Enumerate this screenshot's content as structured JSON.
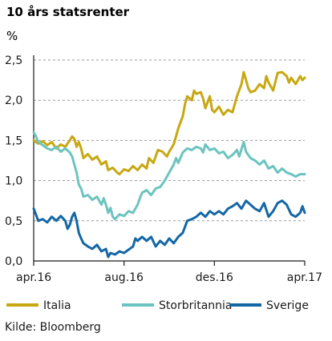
{
  "chart_data": {
    "type": "line",
    "title": "10 års statsrenter",
    "ylabel": "%",
    "source": "Kilde: Bloomberg",
    "ylim": [
      0,
      2.5
    ],
    "yticks": [
      "0,0",
      "0,5",
      "1,0",
      "1,5",
      "2,0",
      "2,5"
    ],
    "ytick_values": [
      0,
      0.5,
      1.0,
      1.5,
      2.0,
      2.5
    ],
    "xlim": [
      0,
      12
    ],
    "xtick_labels": [
      "apr.16",
      "aug.16",
      "des.16",
      "apr.17"
    ],
    "xtick_values": [
      0,
      4,
      8,
      12
    ],
    "grid": "horizontal dashed",
    "legend": "bottom",
    "series": [
      {
        "name": "Italia",
        "color": "#c8a812",
        "points": [
          [
            0,
            1.5
          ],
          [
            0.2,
            1.46
          ],
          [
            0.4,
            1.49
          ],
          [
            0.6,
            1.44
          ],
          [
            0.8,
            1.48
          ],
          [
            1.0,
            1.4
          ],
          [
            1.2,
            1.45
          ],
          [
            1.4,
            1.42
          ],
          [
            1.6,
            1.5
          ],
          [
            1.7,
            1.55
          ],
          [
            1.8,
            1.52
          ],
          [
            1.9,
            1.42
          ],
          [
            2.0,
            1.48
          ],
          [
            2.1,
            1.4
          ],
          [
            2.2,
            1.28
          ],
          [
            2.4,
            1.33
          ],
          [
            2.6,
            1.26
          ],
          [
            2.8,
            1.3
          ],
          [
            3.0,
            1.2
          ],
          [
            3.2,
            1.24
          ],
          [
            3.3,
            1.13
          ],
          [
            3.5,
            1.16
          ],
          [
            3.7,
            1.1
          ],
          [
            3.8,
            1.08
          ],
          [
            4.0,
            1.14
          ],
          [
            4.2,
            1.12
          ],
          [
            4.4,
            1.18
          ],
          [
            4.6,
            1.13
          ],
          [
            4.8,
            1.2
          ],
          [
            5.0,
            1.15
          ],
          [
            5.1,
            1.28
          ],
          [
            5.3,
            1.22
          ],
          [
            5.5,
            1.38
          ],
          [
            5.7,
            1.36
          ],
          [
            5.9,
            1.3
          ],
          [
            6.0,
            1.36
          ],
          [
            6.2,
            1.45
          ],
          [
            6.3,
            1.55
          ],
          [
            6.4,
            1.65
          ],
          [
            6.6,
            1.8
          ],
          [
            6.7,
            1.95
          ],
          [
            6.8,
            2.05
          ],
          [
            7.0,
            2.0
          ],
          [
            7.1,
            2.12
          ],
          [
            7.2,
            2.08
          ],
          [
            7.4,
            2.1
          ],
          [
            7.5,
            2.02
          ],
          [
            7.6,
            1.9
          ],
          [
            7.8,
            2.05
          ],
          [
            7.9,
            1.88
          ],
          [
            8.0,
            1.85
          ],
          [
            8.2,
            1.92
          ],
          [
            8.4,
            1.82
          ],
          [
            8.6,
            1.88
          ],
          [
            8.8,
            1.85
          ],
          [
            9.0,
            2.05
          ],
          [
            9.2,
            2.2
          ],
          [
            9.3,
            2.35
          ],
          [
            9.4,
            2.25
          ],
          [
            9.5,
            2.15
          ],
          [
            9.6,
            2.1
          ],
          [
            9.8,
            2.12
          ],
          [
            10.0,
            2.2
          ],
          [
            10.2,
            2.15
          ],
          [
            10.3,
            2.3
          ],
          [
            10.4,
            2.22
          ],
          [
            10.6,
            2.12
          ],
          [
            10.8,
            2.34
          ],
          [
            11.0,
            2.35
          ],
          [
            11.2,
            2.3
          ],
          [
            11.3,
            2.22
          ],
          [
            11.4,
            2.28
          ],
          [
            11.6,
            2.2
          ],
          [
            11.8,
            2.3
          ],
          [
            11.9,
            2.25
          ],
          [
            12.0,
            2.28
          ]
        ]
      },
      {
        "name": "Storbritannia",
        "color": "#6cc4c0",
        "points": [
          [
            0,
            1.6
          ],
          [
            0.1,
            1.55
          ],
          [
            0.2,
            1.48
          ],
          [
            0.4,
            1.44
          ],
          [
            0.6,
            1.4
          ],
          [
            0.8,
            1.38
          ],
          [
            1.0,
            1.42
          ],
          [
            1.2,
            1.36
          ],
          [
            1.4,
            1.4
          ],
          [
            1.6,
            1.35
          ],
          [
            1.7,
            1.3
          ],
          [
            1.8,
            1.2
          ],
          [
            1.9,
            1.1
          ],
          [
            2.0,
            0.95
          ],
          [
            2.1,
            0.9
          ],
          [
            2.2,
            0.8
          ],
          [
            2.4,
            0.82
          ],
          [
            2.6,
            0.76
          ],
          [
            2.8,
            0.8
          ],
          [
            3.0,
            0.7
          ],
          [
            3.1,
            0.78
          ],
          [
            3.2,
            0.7
          ],
          [
            3.3,
            0.6
          ],
          [
            3.4,
            0.66
          ],
          [
            3.5,
            0.55
          ],
          [
            3.6,
            0.52
          ],
          [
            3.8,
            0.58
          ],
          [
            4.0,
            0.56
          ],
          [
            4.2,
            0.62
          ],
          [
            4.4,
            0.6
          ],
          [
            4.6,
            0.7
          ],
          [
            4.7,
            0.78
          ],
          [
            4.8,
            0.85
          ],
          [
            5.0,
            0.88
          ],
          [
            5.2,
            0.82
          ],
          [
            5.4,
            0.9
          ],
          [
            5.6,
            0.92
          ],
          [
            5.8,
            1.0
          ],
          [
            6.0,
            1.1
          ],
          [
            6.2,
            1.2
          ],
          [
            6.3,
            1.28
          ],
          [
            6.4,
            1.22
          ],
          [
            6.6,
            1.35
          ],
          [
            6.8,
            1.4
          ],
          [
            7.0,
            1.38
          ],
          [
            7.2,
            1.42
          ],
          [
            7.4,
            1.4
          ],
          [
            7.5,
            1.35
          ],
          [
            7.6,
            1.45
          ],
          [
            7.8,
            1.38
          ],
          [
            8.0,
            1.4
          ],
          [
            8.2,
            1.34
          ],
          [
            8.4,
            1.36
          ],
          [
            8.6,
            1.28
          ],
          [
            8.8,
            1.32
          ],
          [
            9.0,
            1.38
          ],
          [
            9.1,
            1.3
          ],
          [
            9.3,
            1.48
          ],
          [
            9.4,
            1.36
          ],
          [
            9.6,
            1.28
          ],
          [
            9.8,
            1.25
          ],
          [
            10.0,
            1.2
          ],
          [
            10.2,
            1.25
          ],
          [
            10.4,
            1.15
          ],
          [
            10.6,
            1.18
          ],
          [
            10.8,
            1.1
          ],
          [
            11.0,
            1.15
          ],
          [
            11.2,
            1.1
          ],
          [
            11.4,
            1.08
          ],
          [
            11.6,
            1.05
          ],
          [
            11.8,
            1.08
          ],
          [
            12.0,
            1.08
          ]
        ]
      },
      {
        "name": "Sverige",
        "color": "#1467a5",
        "points": [
          [
            0,
            0.65
          ],
          [
            0.1,
            0.58
          ],
          [
            0.2,
            0.5
          ],
          [
            0.4,
            0.52
          ],
          [
            0.6,
            0.48
          ],
          [
            0.8,
            0.55
          ],
          [
            1.0,
            0.5
          ],
          [
            1.2,
            0.56
          ],
          [
            1.4,
            0.5
          ],
          [
            1.5,
            0.4
          ],
          [
            1.6,
            0.45
          ],
          [
            1.7,
            0.55
          ],
          [
            1.8,
            0.6
          ],
          [
            1.9,
            0.5
          ],
          [
            2.0,
            0.35
          ],
          [
            2.1,
            0.28
          ],
          [
            2.2,
            0.22
          ],
          [
            2.4,
            0.18
          ],
          [
            2.6,
            0.15
          ],
          [
            2.8,
            0.2
          ],
          [
            3.0,
            0.12
          ],
          [
            3.2,
            0.15
          ],
          [
            3.3,
            0.05
          ],
          [
            3.4,
            0.1
          ],
          [
            3.6,
            0.08
          ],
          [
            3.8,
            0.12
          ],
          [
            4.0,
            0.1
          ],
          [
            4.2,
            0.14
          ],
          [
            4.4,
            0.18
          ],
          [
            4.5,
            0.28
          ],
          [
            4.6,
            0.25
          ],
          [
            4.8,
            0.3
          ],
          [
            5.0,
            0.25
          ],
          [
            5.2,
            0.3
          ],
          [
            5.4,
            0.18
          ],
          [
            5.6,
            0.25
          ],
          [
            5.8,
            0.2
          ],
          [
            6.0,
            0.28
          ],
          [
            6.2,
            0.22
          ],
          [
            6.4,
            0.3
          ],
          [
            6.6,
            0.35
          ],
          [
            6.8,
            0.5
          ],
          [
            7.0,
            0.52
          ],
          [
            7.2,
            0.55
          ],
          [
            7.4,
            0.6
          ],
          [
            7.6,
            0.55
          ],
          [
            7.8,
            0.62
          ],
          [
            8.0,
            0.58
          ],
          [
            8.2,
            0.62
          ],
          [
            8.4,
            0.58
          ],
          [
            8.6,
            0.65
          ],
          [
            8.8,
            0.68
          ],
          [
            9.0,
            0.72
          ],
          [
            9.2,
            0.65
          ],
          [
            9.4,
            0.75
          ],
          [
            9.6,
            0.7
          ],
          [
            9.8,
            0.65
          ],
          [
            10.0,
            0.62
          ],
          [
            10.2,
            0.72
          ],
          [
            10.4,
            0.55
          ],
          [
            10.6,
            0.62
          ],
          [
            10.8,
            0.72
          ],
          [
            11.0,
            0.75
          ],
          [
            11.2,
            0.7
          ],
          [
            11.4,
            0.58
          ],
          [
            11.6,
            0.55
          ],
          [
            11.8,
            0.6
          ],
          [
            11.9,
            0.68
          ],
          [
            12.0,
            0.6
          ]
        ]
      }
    ]
  }
}
